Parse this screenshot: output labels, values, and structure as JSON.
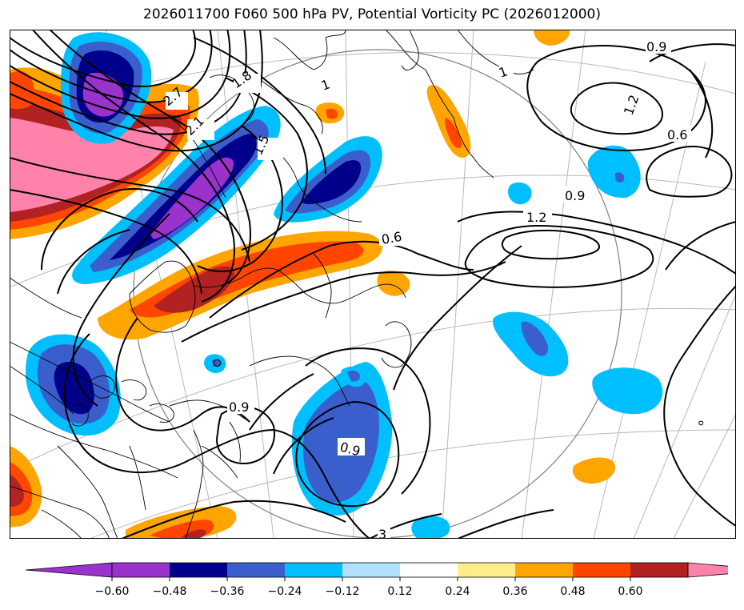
{
  "title": "2026011700 F060 500 hPa PV, Potential Vorticity PC (2026012000)",
  "colorbar": {
    "ticks": [
      "−0.60",
      "−0.48",
      "−0.36",
      "−0.24",
      "−0.12",
      "0.12",
      "0.24",
      "0.36",
      "0.48",
      "0.60"
    ],
    "colors": {
      "under": "#9933cc",
      "bins": [
        "#9933cc",
        "#00008b",
        "#3a5fcd",
        "#00bfff",
        "#b0e2ff",
        "#ffffff",
        "#ffec8b",
        "#ffa500",
        "#ff4500",
        "#b22222"
      ],
      "over": "#ff82ab"
    }
  },
  "contour_labels": [
    "0.9",
    "1.2",
    "0.6",
    "0.9",
    "1.2",
    "0.6",
    "1.8",
    "2.1",
    "1.5",
    "2.7",
    "1",
    "1",
    "0.9",
    "0.9",
    "3"
  ]
}
